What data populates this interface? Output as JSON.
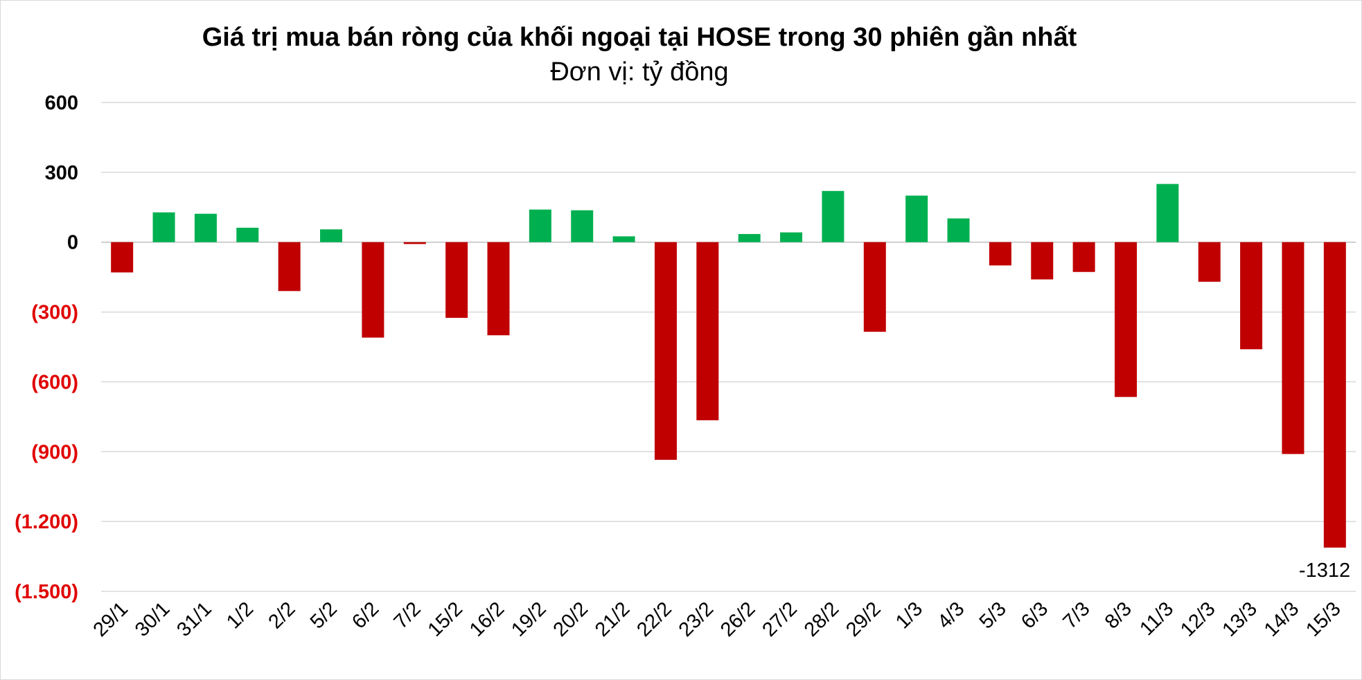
{
  "chart_data": {
    "type": "bar",
    "title": "Giá trị mua bán ròng của khối ngoại tại HOSE trong 30 phiên gần nhất",
    "subtitle": "Đơn vị: tỷ đồng",
    "xlabel": "",
    "ylabel": "",
    "ylim": [
      -1500,
      600
    ],
    "grid": true,
    "legend": "none",
    "y_ticks": [
      {
        "value": 600,
        "label": "600"
      },
      {
        "value": 300,
        "label": "300"
      },
      {
        "value": 0,
        "label": "0"
      },
      {
        "value": -300,
        "label": "(300)"
      },
      {
        "value": -600,
        "label": "(600)"
      },
      {
        "value": -900,
        "label": "(900)"
      },
      {
        "value": -1200,
        "label": "(1.200)"
      },
      {
        "value": -1500,
        "label": "(1.500)"
      }
    ],
    "categories": [
      "29/1",
      "30/1",
      "31/1",
      "1/2",
      "2/2",
      "5/2",
      "6/2",
      "7/2",
      "15/2",
      "16/2",
      "19/2",
      "20/2",
      "21/2",
      "22/2",
      "23/2",
      "26/2",
      "27/2",
      "28/2",
      "29/2",
      "1/3",
      "4/3",
      "5/3",
      "6/3",
      "7/3",
      "8/3",
      "11/3",
      "12/3",
      "13/3",
      "14/3",
      "15/3"
    ],
    "values": [
      -130,
      128,
      122,
      62,
      -210,
      55,
      -410,
      -8,
      -325,
      -400,
      140,
      137,
      25,
      -935,
      -765,
      35,
      42,
      220,
      -385,
      200,
      102,
      -100,
      -160,
      -128,
      -665,
      250,
      -170,
      -460,
      -910,
      -1312
    ],
    "data_labels": [
      {
        "category": "15/3",
        "text": "-1312"
      }
    ],
    "colors": {
      "positive": "#00b050",
      "negative": "#c00000",
      "negative_tick_label": "#e00000",
      "positive_tick_label": "#000000",
      "grid": "#d9d9d9",
      "zero_line": "#bfbfbf"
    }
  }
}
